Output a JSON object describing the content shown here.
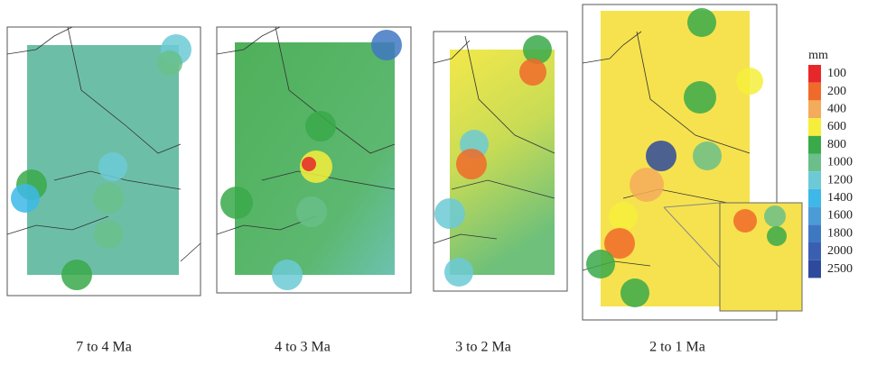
{
  "panels": [
    {
      "label": "7 to 4 Ma"
    },
    {
      "label": "4 to 3 Ma"
    },
    {
      "label": "3 to 2 Ma"
    },
    {
      "label": "2 to 1 Ma"
    }
  ],
  "legend": {
    "title": "mm",
    "items": [
      {
        "label": 100,
        "color": "#e8272a"
      },
      {
        "label": 200,
        "color": "#f06a2a"
      },
      {
        "label": 400,
        "color": "#f4ab5c"
      },
      {
        "label": 600,
        "color": "#f6ee3c"
      },
      {
        "label": 800,
        "color": "#3aa94a"
      },
      {
        "label": 1000,
        "color": "#6abf8a"
      },
      {
        "label": 1200,
        "color": "#6ccad6"
      },
      {
        "label": 1400,
        "color": "#3db8e8"
      },
      {
        "label": 1600,
        "color": "#4b9bd6"
      },
      {
        "label": 1800,
        "color": "#3f78c2"
      },
      {
        "label": 2000,
        "color": "#3b5fb0"
      },
      {
        "label": 2500,
        "color": "#2e4a9c"
      }
    ]
  }
}
